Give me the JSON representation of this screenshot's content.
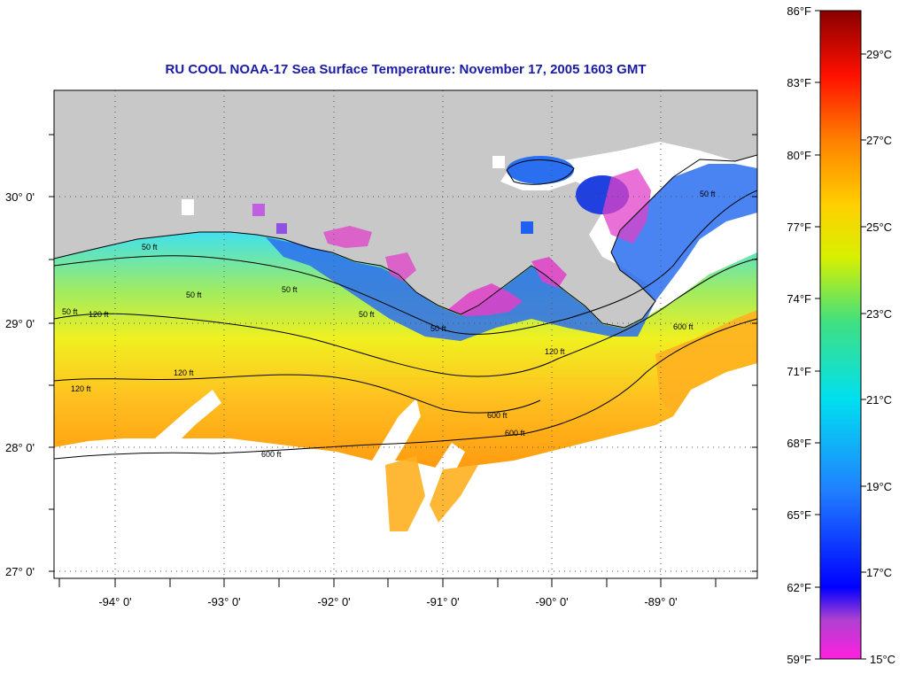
{
  "title": "RU COOL  NOAA-17  Sea Surface Temperature:  November 17, 2005 1603 GMT",
  "lat_labels": [
    "30° 0'",
    "29° 0'",
    "28° 0'",
    "27° 0'"
  ],
  "lon_labels": [
    "-94° 0'",
    "-93° 0'",
    "-92° 0'",
    "-91° 0'",
    "-90° 0'",
    "-89° 0'"
  ],
  "contour_labels": [
    "50 ft",
    "50 ft",
    "50 ft",
    "50 ft",
    "50 ft",
    "50 ft",
    "120 ft",
    "120 ft",
    "120 ft",
    "120 ft",
    "600 ft",
    "600 ft",
    "600 ft",
    "600 ft",
    "50 ft"
  ],
  "colorbar": {
    "fahrenheit_labels": [
      "86°F",
      "83°F",
      "80°F",
      "77°F",
      "74°F",
      "71°F",
      "68°F",
      "65°F",
      "62°F",
      "59°F"
    ],
    "celsius_labels": [
      "29°C",
      "27°C",
      "25°C",
      "23°C",
      "21°C",
      "19°C",
      "17°C",
      "15°C"
    ],
    "range_f": [
      59,
      86
    ],
    "range_c": [
      15,
      30
    ]
  },
  "colors": {
    "land": "#c8c8c8",
    "title": "#1a1aa8",
    "missing_data": "#ffffff"
  }
}
